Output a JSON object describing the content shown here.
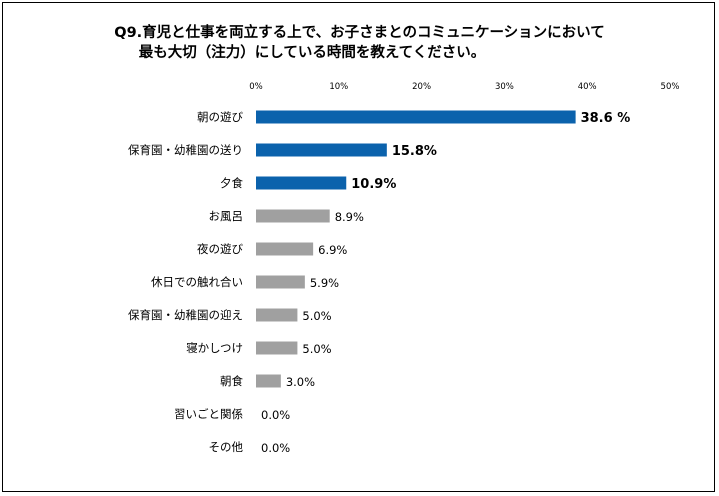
{
  "chart_data": {
    "type": "bar",
    "orientation": "horizontal",
    "title": [
      "Q9.育児と仕事を両立する上で、お子さまとのコミュニケーションにおいて",
      "最も大切（注力）にしている時間を教えてください。"
    ],
    "xlim": [
      0,
      50
    ],
    "xticks": [
      "0%",
      "10%",
      "20%",
      "30%",
      "40%",
      "50%"
    ],
    "grid": false,
    "legend": "none",
    "categories": [
      "朝の遊び",
      "保育園・幼稚園の送り",
      "夕食",
      "お風呂",
      "夜の遊び",
      "休日での触れ合い",
      "保育園・幼稚園の迎え",
      "寝かしつけ",
      "朝食",
      "習いごと関係",
      "その他"
    ],
    "values": [
      38.6,
      15.8,
      10.9,
      8.9,
      6.9,
      5.9,
      5.0,
      5.0,
      3.0,
      0.0,
      0.0
    ],
    "value_labels": [
      "38.6 %",
      "15.8%",
      "10.9%",
      "8.9%",
      "6.9%",
      "5.9%",
      "5.0%",
      "5.0%",
      "3.0%",
      "0.0%",
      "0.0%"
    ],
    "highlight_count": 3,
    "colors": {
      "highlight": "#0B62AC",
      "other": "#A0A0A0"
    }
  }
}
